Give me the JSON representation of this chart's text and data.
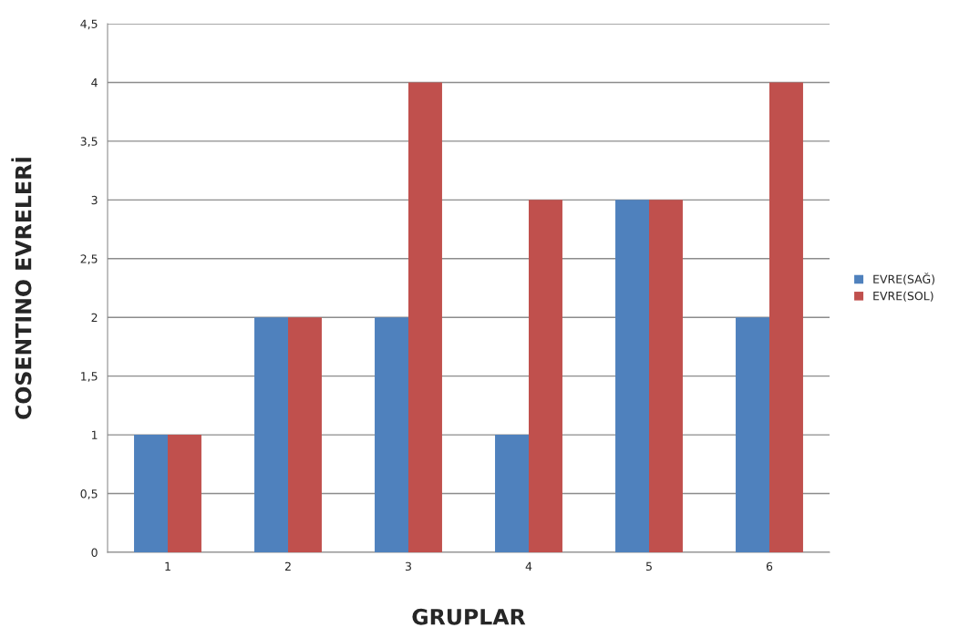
{
  "chart_data": {
    "type": "bar",
    "xlabel": "GRUPLAR",
    "ylabel": "COSENTINO EVRELERİ",
    "categories": [
      "1",
      "2",
      "3",
      "4",
      "5",
      "6"
    ],
    "series": [
      {
        "name": "EVRE(SAĞ)",
        "color": "#4f81bd",
        "values": [
          1,
          2,
          2,
          1,
          3,
          2
        ]
      },
      {
        "name": "EVRE(SOL)",
        "color": "#c0504d",
        "values": [
          1,
          2,
          4,
          3,
          3,
          4
        ]
      }
    ],
    "ylim": [
      0,
      4.5
    ],
    "yticks": [
      0,
      {
        "value": 0.5,
        "label": "0,5"
      },
      1,
      {
        "value": 1.5,
        "label": "1,5"
      },
      2,
      {
        "value": 2.5,
        "label": "2,5"
      },
      3,
      {
        "value": 3.5,
        "label": "3,5"
      },
      4,
      {
        "value": 4.5,
        "label": "4,5"
      }
    ],
    "grid": "y",
    "legend": "right"
  }
}
